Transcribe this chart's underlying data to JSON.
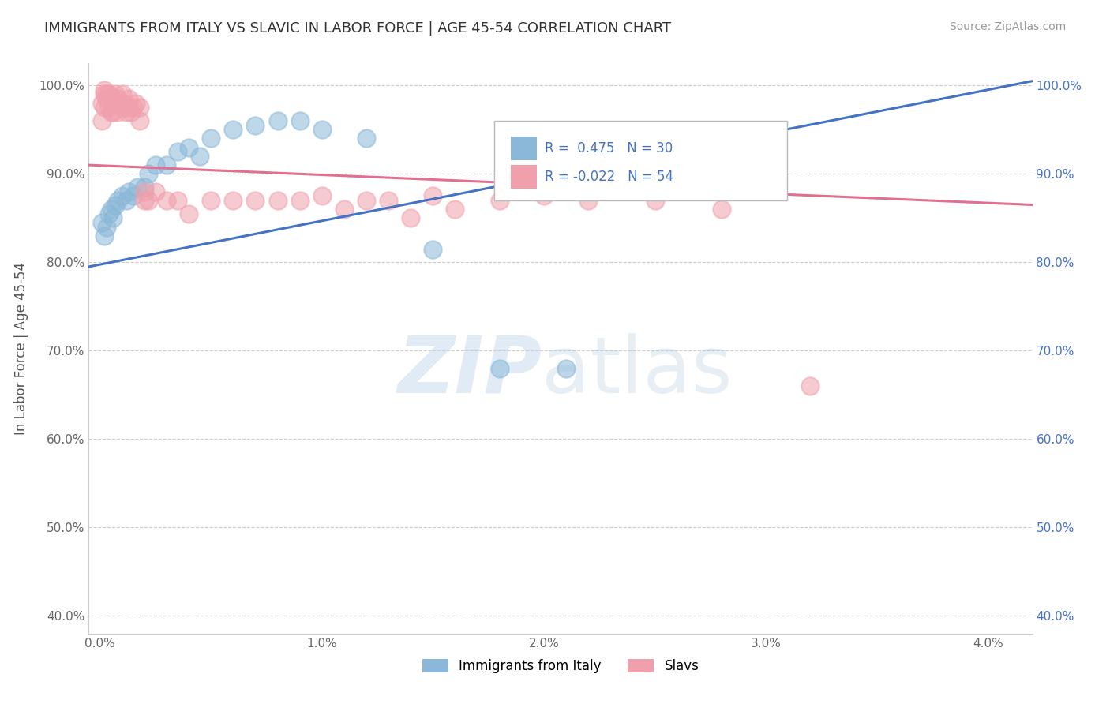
{
  "title": "IMMIGRANTS FROM ITALY VS SLAVIC IN LABOR FORCE | AGE 45-54 CORRELATION CHART",
  "source": "Source: ZipAtlas.com",
  "ylabel": "In Labor Force | Age 45-54",
  "xlim": [
    -0.0005,
    0.042
  ],
  "ylim": [
    0.38,
    1.025
  ],
  "xticks": [
    0.0,
    0.01,
    0.02,
    0.03,
    0.04
  ],
  "xticklabels": [
    "0.0%",
    "1.0%",
    "2.0%",
    "3.0%",
    "4.0%"
  ],
  "yticks": [
    0.4,
    0.5,
    0.6,
    0.7,
    0.8,
    0.9,
    1.0
  ],
  "yticklabels": [
    "40.0%",
    "50.0%",
    "60.0%",
    "70.0%",
    "80.0%",
    "90.0%",
    "100.0%"
  ],
  "italy_color": "#8BB8D8",
  "slavic_color": "#F0A0AC",
  "italy_R": 0.475,
  "italy_N": 30,
  "slavic_R": -0.022,
  "slavic_N": 54,
  "legend_label_italy": "Immigrants from Italy",
  "legend_label_slavic": "Slavs",
  "italy_line_color": "#4472C4",
  "slavic_line_color": "#E07090",
  "grid_color": "#CCCCCC",
  "right_yaxis_color": "#4472C4",
  "italy_scatter_x": [
    0.0001,
    0.0002,
    0.0003,
    0.0004,
    0.0005,
    0.0006,
    0.0007,
    0.0008,
    0.001,
    0.0012,
    0.0013,
    0.0015,
    0.0017,
    0.002,
    0.0022,
    0.0025,
    0.003,
    0.0035,
    0.004,
    0.0045,
    0.005,
    0.006,
    0.007,
    0.008,
    0.009,
    0.01,
    0.012,
    0.015,
    0.018,
    0.021
  ],
  "italy_scatter_y": [
    0.845,
    0.83,
    0.84,
    0.855,
    0.86,
    0.85,
    0.865,
    0.87,
    0.875,
    0.87,
    0.88,
    0.875,
    0.885,
    0.885,
    0.9,
    0.91,
    0.91,
    0.925,
    0.93,
    0.92,
    0.94,
    0.95,
    0.955,
    0.96,
    0.96,
    0.95,
    0.94,
    0.815,
    0.68,
    0.68
  ],
  "slavic_scatter_x": [
    0.0001,
    0.0001,
    0.0002,
    0.0002,
    0.0002,
    0.0003,
    0.0003,
    0.0004,
    0.0004,
    0.0005,
    0.0005,
    0.0006,
    0.0006,
    0.0007,
    0.0007,
    0.0008,
    0.0008,
    0.0009,
    0.001,
    0.001,
    0.0011,
    0.0012,
    0.0013,
    0.0013,
    0.0014,
    0.0015,
    0.0016,
    0.0018,
    0.0018,
    0.002,
    0.002,
    0.0022,
    0.0025,
    0.003,
    0.0035,
    0.004,
    0.005,
    0.006,
    0.007,
    0.008,
    0.009,
    0.01,
    0.012,
    0.013,
    0.015,
    0.018,
    0.02,
    0.022,
    0.025,
    0.028,
    0.032,
    0.016,
    0.014,
    0.011
  ],
  "slavic_scatter_y": [
    0.96,
    0.98,
    0.975,
    0.99,
    0.995,
    0.985,
    0.99,
    0.975,
    0.99,
    0.97,
    0.985,
    0.97,
    0.985,
    0.98,
    0.99,
    0.97,
    0.985,
    0.98,
    0.975,
    0.99,
    0.98,
    0.97,
    0.975,
    0.985,
    0.97,
    0.975,
    0.98,
    0.96,
    0.975,
    0.87,
    0.88,
    0.87,
    0.88,
    0.87,
    0.87,
    0.855,
    0.87,
    0.87,
    0.87,
    0.87,
    0.87,
    0.875,
    0.87,
    0.87,
    0.875,
    0.87,
    0.875,
    0.87,
    0.87,
    0.86,
    0.66,
    0.86,
    0.85,
    0.86
  ],
  "italy_line_x": [
    -0.0005,
    0.042
  ],
  "italy_line_y": [
    0.795,
    1.005
  ],
  "slavic_line_x": [
    -0.0005,
    0.042
  ],
  "slavic_line_y": [
    0.91,
    0.865
  ]
}
